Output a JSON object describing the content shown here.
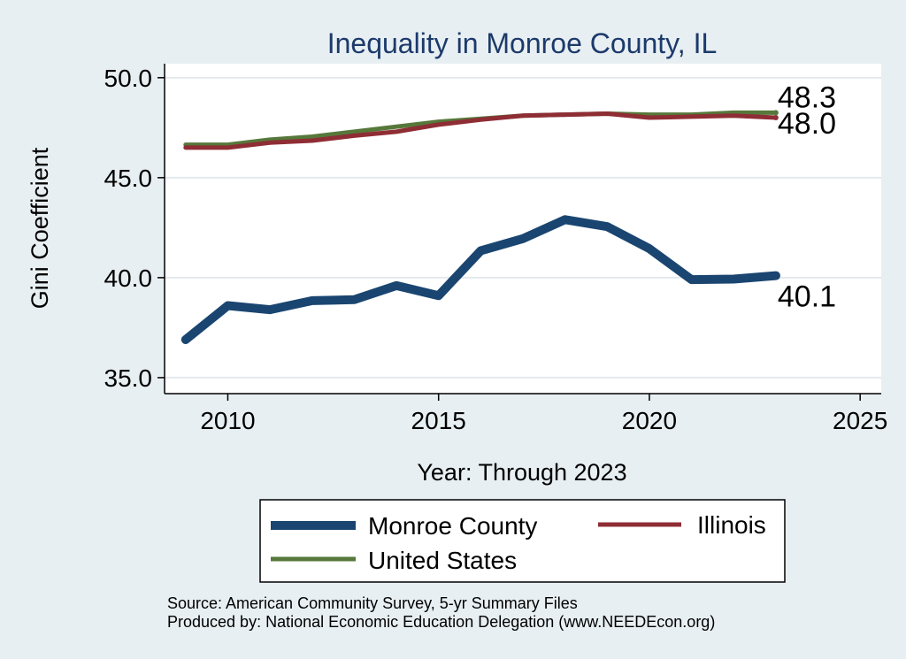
{
  "chart_data": {
    "type": "line",
    "title": "Inequality in Monroe County, IL",
    "xlabel": "Year: Through 2023",
    "ylabel": "Gini Coefficient",
    "xlim": [
      2008.5,
      2025.5
    ],
    "ylim": [
      34.2,
      50.7
    ],
    "x_ticks": [
      2010,
      2015,
      2020,
      2025
    ],
    "y_ticks": [
      35,
      40,
      45,
      50
    ],
    "x_tick_labels": [
      "2010",
      "2015",
      "2020",
      "2025"
    ],
    "y_tick_labels": [
      "35.0",
      "40.0",
      "45.0",
      "50.0"
    ],
    "grid": true,
    "x": [
      2009,
      2010,
      2011,
      2012,
      2013,
      2014,
      2015,
      2016,
      2017,
      2018,
      2019,
      2020,
      2021,
      2022,
      2023
    ],
    "series": [
      {
        "name": "Monroe County",
        "color": "#1a4570",
        "values": [
          36.9,
          38.6,
          38.4,
          38.85,
          38.9,
          39.6,
          39.1,
          41.35,
          41.95,
          42.9,
          42.55,
          41.45,
          39.9,
          39.93,
          40.1
        ],
        "end_label": "40.1"
      },
      {
        "name": "Illinois",
        "color": "#8f2d35",
        "values": [
          46.5,
          46.5,
          46.75,
          46.85,
          47.1,
          47.3,
          47.65,
          47.9,
          48.1,
          48.15,
          48.2,
          48.0,
          48.05,
          48.1,
          48.0
        ],
        "end_label": "48.0"
      },
      {
        "name": "United States",
        "color": "#56783a",
        "values": [
          46.65,
          46.65,
          46.9,
          47.05,
          47.3,
          47.55,
          47.8,
          47.95,
          48.1,
          48.15,
          48.2,
          48.15,
          48.15,
          48.25,
          48.25
        ],
        "end_label": "48.3"
      }
    ],
    "legend_position": "bottom",
    "source_lines": [
      "Source: American Community Survey, 5-yr Summary Files",
      "Produced by: National Economic Education Delegation (www.NEEDEcon.org)"
    ]
  }
}
